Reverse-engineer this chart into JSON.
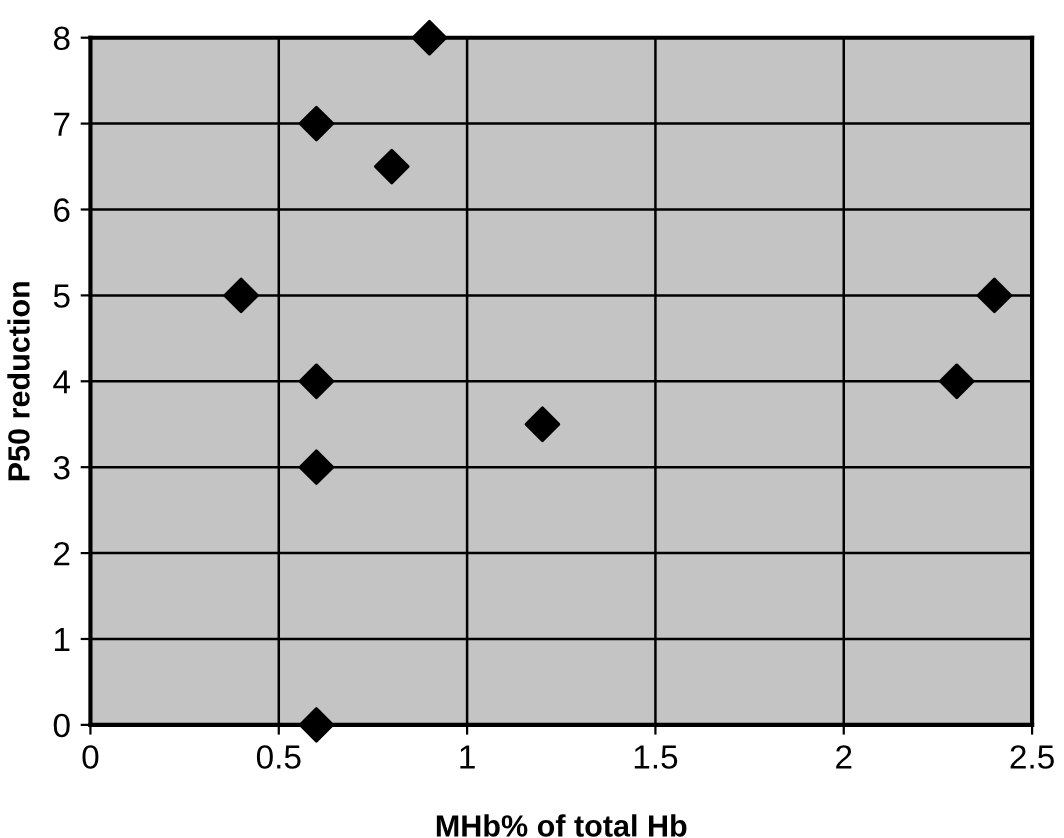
{
  "chart_data": {
    "type": "scatter",
    "xlabel": "MHb% of total Hb",
    "ylabel": "P50 reduction",
    "x": [
      0.4,
      0.6,
      0.6,
      0.6,
      0.6,
      0.8,
      0.9,
      1.2,
      2.3,
      2.4
    ],
    "values": [
      5,
      7,
      4,
      3,
      0,
      6.5,
      8,
      3.5,
      4,
      5
    ],
    "color": "#000000",
    "marker": "diamond",
    "xlim": [
      0,
      2.5
    ],
    "xticks": [
      0,
      0.5,
      1,
      1.5,
      2,
      2.5
    ],
    "ylim": [
      0,
      8
    ],
    "yticks": [
      0,
      1,
      2,
      3,
      4,
      5,
      6,
      7,
      8
    ],
    "grid": true
  }
}
